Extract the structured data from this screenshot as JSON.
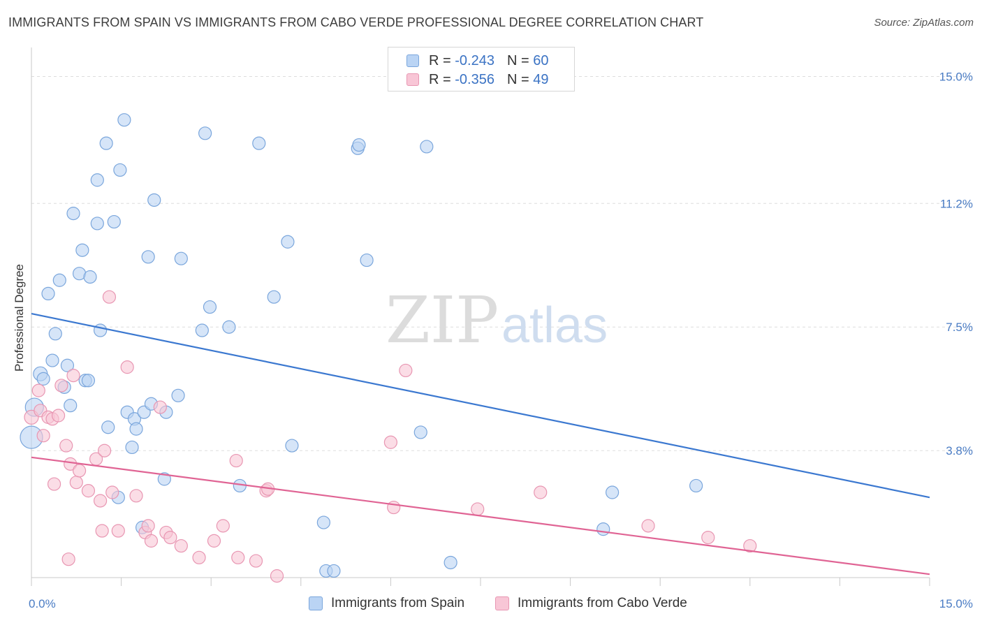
{
  "title": "IMMIGRANTS FROM SPAIN VS IMMIGRANTS FROM CABO VERDE PROFESSIONAL DEGREE CORRELATION CHART",
  "source": "Source: ZipAtlas.com",
  "watermark": {
    "zip": "ZIP",
    "atlas": "atlas"
  },
  "legend": {
    "r_label": "R =",
    "n_label": "N =",
    "rows": [
      {
        "r": "-0.243",
        "n": "60"
      },
      {
        "r": "-0.356",
        "n": "49"
      }
    ]
  },
  "colors": {
    "spain_fill": "#bad4f4",
    "spain_stroke": "#7aa6dc",
    "spain_line": "#3b78d0",
    "cabo_fill": "#f8c6d6",
    "cabo_stroke": "#e896b2",
    "cabo_line": "#e06494",
    "grid": "#dddddd",
    "tick_label": "#4a7cc4"
  },
  "chart_data": {
    "type": "scatter",
    "title": "IMMIGRANTS FROM SPAIN VS IMMIGRANTS FROM CABO VERDE PROFESSIONAL DEGREE CORRELATION CHART",
    "xlabel": "",
    "ylabel": "Professional Degree",
    "xlim": [
      0,
      15
    ],
    "ylim": [
      0,
      15.7
    ],
    "x_tick_labels": [
      {
        "value": 0,
        "label": "0.0%"
      },
      {
        "value": 15,
        "label": "15.0%"
      }
    ],
    "y_tick_labels": [
      {
        "value": 3.8,
        "label": "3.8%"
      },
      {
        "value": 7.5,
        "label": "7.5%"
      },
      {
        "value": 11.2,
        "label": "11.2%"
      },
      {
        "value": 15.0,
        "label": "15.0%"
      }
    ],
    "grid": true,
    "legend_position": "top-center",
    "series": [
      {
        "name": "Immigrants from Spain",
        "r": -0.243,
        "n": 60,
        "trend": {
          "x": [
            0,
            15
          ],
          "y": [
            7.9,
            2.4
          ]
        },
        "points": [
          [
            0.0,
            4.2,
            16
          ],
          [
            0.05,
            5.1,
            13
          ],
          [
            0.15,
            6.1,
            10
          ],
          [
            0.2,
            5.95,
            9
          ],
          [
            0.28,
            8.5,
            9
          ],
          [
            0.35,
            6.5,
            9
          ],
          [
            0.4,
            7.3,
            9
          ],
          [
            0.47,
            8.9,
            9
          ],
          [
            0.55,
            5.7,
            9
          ],
          [
            0.6,
            6.35,
            9
          ],
          [
            0.65,
            5.15,
            9
          ],
          [
            0.7,
            10.9,
            9
          ],
          [
            0.8,
            9.1,
            9
          ],
          [
            0.85,
            9.8,
            9
          ],
          [
            0.9,
            5.9,
            9
          ],
          [
            0.95,
            5.9,
            9
          ],
          [
            0.98,
            9.0,
            9
          ],
          [
            1.1,
            11.9,
            9
          ],
          [
            1.1,
            10.6,
            9
          ],
          [
            1.15,
            7.4,
            9
          ],
          [
            1.25,
            13.0,
            9
          ],
          [
            1.28,
            4.5,
            9
          ],
          [
            1.38,
            10.65,
            9
          ],
          [
            1.45,
            2.4,
            9
          ],
          [
            1.48,
            12.2,
            9
          ],
          [
            1.55,
            13.7,
            9
          ],
          [
            1.6,
            4.95,
            9
          ],
          [
            1.68,
            3.9,
            9
          ],
          [
            1.72,
            4.75,
            9
          ],
          [
            1.75,
            4.45,
            9
          ],
          [
            1.85,
            1.5,
            9
          ],
          [
            1.88,
            4.95,
            9
          ],
          [
            1.95,
            9.6,
            9
          ],
          [
            2.05,
            11.3,
            9
          ],
          [
            2.0,
            5.2,
            9
          ],
          [
            2.25,
            4.95,
            9
          ],
          [
            2.22,
            2.95,
            9
          ],
          [
            2.45,
            5.45,
            9
          ],
          [
            2.5,
            9.55,
            9
          ],
          [
            2.85,
            7.4,
            9
          ],
          [
            2.9,
            13.3,
            9
          ],
          [
            2.98,
            8.1,
            9
          ],
          [
            3.3,
            7.5,
            9
          ],
          [
            3.48,
            2.75,
            9
          ],
          [
            3.8,
            13.0,
            9
          ],
          [
            4.05,
            8.4,
            9
          ],
          [
            4.28,
            10.05,
            9
          ],
          [
            4.35,
            3.95,
            9
          ],
          [
            4.88,
            1.65,
            9
          ],
          [
            4.92,
            0.2,
            9
          ],
          [
            5.05,
            0.2,
            9
          ],
          [
            5.45,
            12.85,
            9
          ],
          [
            5.47,
            12.95,
            9
          ],
          [
            5.6,
            9.5,
            9
          ],
          [
            6.5,
            4.35,
            9
          ],
          [
            6.6,
            12.9,
            9
          ],
          [
            7.0,
            0.45,
            9
          ],
          [
            9.55,
            1.45,
            9
          ],
          [
            9.7,
            2.55,
            9
          ],
          [
            11.1,
            2.75,
            9
          ]
        ]
      },
      {
        "name": "Immigrants from Cabo Verde",
        "r": -0.356,
        "n": 49,
        "trend": {
          "x": [
            0,
            15
          ],
          "y": [
            3.6,
            0.1
          ]
        },
        "points": [
          [
            0.0,
            4.8,
            10
          ],
          [
            0.12,
            5.6,
            9
          ],
          [
            0.15,
            5.0,
            9
          ],
          [
            0.2,
            4.25,
            9
          ],
          [
            0.28,
            4.8,
            9
          ],
          [
            0.35,
            4.75,
            9
          ],
          [
            0.38,
            2.8,
            9
          ],
          [
            0.45,
            4.85,
            9
          ],
          [
            0.5,
            5.75,
            9
          ],
          [
            0.58,
            3.95,
            9
          ],
          [
            0.62,
            0.55,
            9
          ],
          [
            0.65,
            3.4,
            9
          ],
          [
            0.7,
            6.05,
            9
          ],
          [
            0.75,
            2.85,
            9
          ],
          [
            0.8,
            3.2,
            9
          ],
          [
            0.95,
            2.6,
            9
          ],
          [
            1.08,
            3.55,
            9
          ],
          [
            1.15,
            2.3,
            9
          ],
          [
            1.18,
            1.4,
            9
          ],
          [
            1.22,
            3.8,
            9
          ],
          [
            1.3,
            8.4,
            9
          ],
          [
            1.35,
            2.55,
            9
          ],
          [
            1.45,
            1.4,
            9
          ],
          [
            1.6,
            6.3,
            9
          ],
          [
            1.75,
            2.45,
            9
          ],
          [
            1.9,
            1.35,
            9
          ],
          [
            1.95,
            1.55,
            9
          ],
          [
            2.0,
            1.1,
            9
          ],
          [
            2.15,
            5.1,
            9
          ],
          [
            2.25,
            1.35,
            9
          ],
          [
            2.32,
            1.2,
            9
          ],
          [
            2.5,
            0.95,
            9
          ],
          [
            2.8,
            0.6,
            9
          ],
          [
            3.05,
            1.1,
            9
          ],
          [
            3.2,
            1.55,
            9
          ],
          [
            3.42,
            3.5,
            9
          ],
          [
            3.45,
            0.6,
            9
          ],
          [
            3.75,
            0.5,
            9
          ],
          [
            3.92,
            2.6,
            9
          ],
          [
            3.95,
            2.65,
            9
          ],
          [
            4.1,
            0.05,
            9
          ],
          [
            6.0,
            4.05,
            9
          ],
          [
            6.05,
            2.1,
            9
          ],
          [
            6.25,
            6.2,
            9
          ],
          [
            7.45,
            2.05,
            9
          ],
          [
            8.5,
            2.55,
            9
          ],
          [
            10.3,
            1.55,
            9
          ],
          [
            11.3,
            1.2,
            9
          ],
          [
            12.0,
            0.95,
            9
          ]
        ]
      }
    ]
  },
  "bottom_legend": [
    {
      "label": "Immigrants from Spain"
    },
    {
      "label": "Immigrants from Cabo Verde"
    }
  ]
}
